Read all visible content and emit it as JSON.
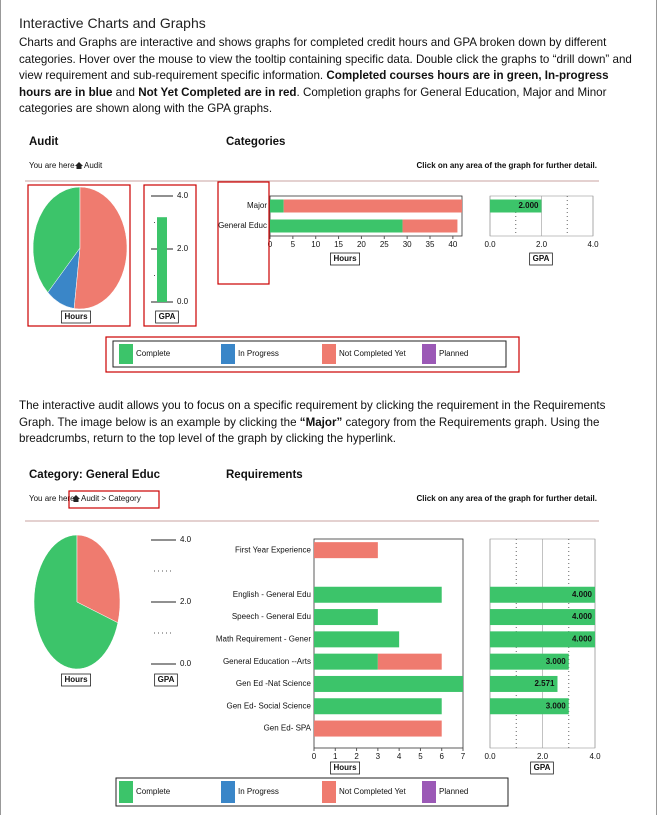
{
  "header": {
    "title": "Interactive Charts and Graphs"
  },
  "intro": [
    {
      "text": "Charts and Graphs are interactive and shows graphs for completed credit hours and GPA broken down by different categories. Hover over the mouse to view the tooltip containing specific data. Double click the graphs to “drill down” and view requirement and sub-requirement specific information.  ",
      "bold": false
    },
    {
      "text": "Completed courses hours are in green, In-progress hours are in blue",
      "bold": true
    },
    {
      "text": " and ",
      "bold": false
    },
    {
      "text": "Not Yet Completed are in red",
      "bold": true
    },
    {
      "text": ". Completion graphs for General Education, Major and Minor categories are shown along with the GPA graphs.",
      "bold": false
    }
  ],
  "paragraph2": [
    {
      "text": "The interactive audit allows you to focus on a specific requirement by clicking the requirement in the Requirements Graph. The image below is an example by clicking the ",
      "bold": false
    },
    {
      "text": "“Major”",
      "bold": true
    },
    {
      "text": " category from the Requirements graph. Using the breadcrumbs, return to the top level of the graph by clicking the hyperlink.",
      "bold": false
    }
  ],
  "ui": {
    "you_are_here": "You are here",
    "click_hint": "Click on any area of the graph for further detail.",
    "hours": "Hours",
    "gpa": "GPA"
  },
  "legend": [
    {
      "name": "Complete",
      "color": "#3cc46a"
    },
    {
      "name": "In Progress",
      "color": "#3a86c8"
    },
    {
      "name": "Not Completed Yet",
      "color": "#ef7b6f"
    },
    {
      "name": "Planned",
      "color": "#9b59b6"
    }
  ],
  "audit": {
    "title": "Audit",
    "breadcrumb": "Audit",
    "chart_title": "Categories",
    "pie": {
      "type": "pie",
      "values": [
        38,
        10,
        52
      ],
      "colors": [
        "#3cc46a",
        "#3a86c8",
        "#ef7b6f"
      ]
    },
    "gauge": {
      "type": "bar",
      "values": [
        3.2
      ],
      "color": "#3cc46a",
      "ylim": [
        0,
        4
      ],
      "yticks": [
        {
          "value": 4,
          "label": "4.0"
        },
        {
          "value": 2,
          "label": "2.0"
        },
        {
          "value": 0,
          "label": "0.0"
        }
      ]
    },
    "hours": {
      "type": "bar",
      "stacked": true,
      "categories": [
        "Major",
        "General Educ"
      ],
      "series": [
        {
          "color": "#3cc46a",
          "values": [
            3,
            29
          ]
        },
        {
          "color": "#ef7b6f",
          "values": [
            39,
            12
          ]
        }
      ],
      "xlim": [
        0,
        42
      ],
      "xticks": [
        0,
        5,
        10,
        15,
        20,
        25,
        30,
        35,
        40
      ]
    },
    "gpa": {
      "type": "bar",
      "values": [
        2,
        null
      ],
      "value_labels": [
        "2.000",
        null
      ],
      "color": "#3cc46a",
      "xlim": [
        0,
        4
      ],
      "xticks": [
        {
          "value": 0,
          "label": "0.0"
        },
        {
          "value": 2,
          "label": "2.0"
        },
        {
          "value": 4,
          "label": "4.0"
        }
      ]
    }
  },
  "category": {
    "title": "Category: General Educ",
    "breadcrumb": "Audit > Category",
    "chart_title": "Requirements",
    "pie": {
      "type": "pie",
      "values": [
        70,
        30
      ],
      "colors": [
        "#3cc46a",
        "#ef7b6f"
      ]
    },
    "gauge": {
      "type": "bar",
      "values": [],
      "color": "#3cc46a",
      "ylim": [
        0,
        4
      ],
      "yticks": [
        {
          "value": 4,
          "label": "4.0"
        },
        {
          "value": 2,
          "label": "2.0"
        },
        {
          "value": 0,
          "label": "0.0"
        }
      ]
    },
    "hours": {
      "type": "bar",
      "stacked": true,
      "categories": [
        "First Year Experience",
        null,
        "English - General Edu",
        "Speech - General Edu",
        "Math Requirement - Gener",
        "General Education --Arts",
        "Gen Ed -Nat Science",
        "Gen Ed- Social Science",
        "Gen Ed- SPA"
      ],
      "series": [
        {
          "color": "#3cc46a",
          "values": [
            0,
            null,
            6,
            3,
            4,
            3,
            7,
            6,
            0
          ]
        },
        {
          "color": "#ef7b6f",
          "values": [
            3,
            null,
            0,
            0,
            0,
            3,
            0,
            0,
            6
          ]
        }
      ],
      "xlim": [
        0,
        7
      ],
      "xticks": [
        0,
        1,
        2,
        3,
        4,
        5,
        6,
        7
      ]
    },
    "gpa": {
      "type": "bar",
      "values": [
        null,
        null,
        4,
        4,
        4,
        3,
        2.571,
        3,
        null
      ],
      "value_labels": [
        null,
        null,
        "4.000",
        "4.000",
        "4.000",
        "3.000",
        "2.571",
        "3.000",
        null
      ],
      "color": "#3cc46a",
      "xlim": [
        0,
        4
      ],
      "xticks": [
        {
          "value": 0,
          "label": "0.0"
        },
        {
          "value": 2,
          "label": "2.0"
        },
        {
          "value": 4,
          "label": "4.0"
        }
      ]
    }
  }
}
